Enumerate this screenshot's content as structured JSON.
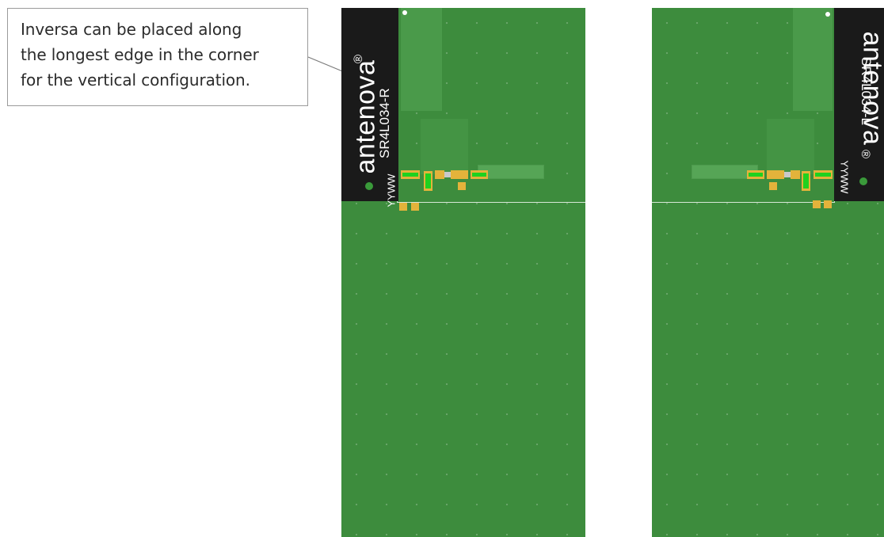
{
  "callout": {
    "lines": [
      "Inversa can be placed along",
      "the longest edge in the corner",
      "for the vertical configuration."
    ]
  },
  "left_board": {
    "brand": "antenova",
    "registered": "®",
    "part_number": "SR4L034-R",
    "date_code": "YYWW"
  },
  "right_board": {
    "brand": "antenova",
    "registered": "®",
    "part_number": "SR4L034-L",
    "date_code": "YYWW"
  },
  "colors": {
    "pcb_green": "#3d8c3d",
    "antenna_black": "#1a1a1a",
    "pad_gold": "#e3b33b",
    "component_green": "#1fd11f"
  }
}
